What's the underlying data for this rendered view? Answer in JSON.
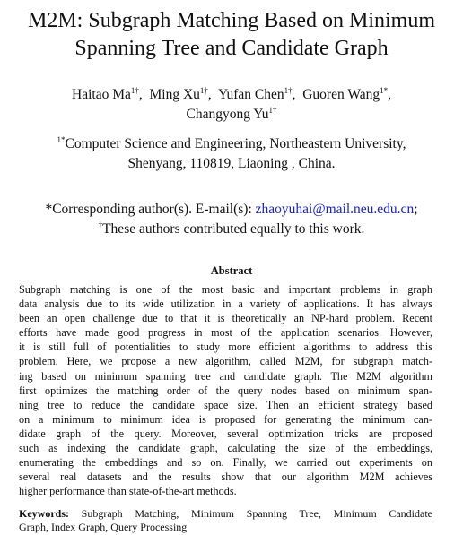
{
  "title": {
    "line1": "M2M: Subgraph Matching Based on Minimum",
    "line2": "Spanning Tree and Candidate Graph"
  },
  "authors": [
    {
      "name": "Haitao Ma",
      "mark": "1†"
    },
    {
      "name": "Ming Xu",
      "mark": "1†"
    },
    {
      "name": "Yufan Chen",
      "mark": "1†"
    },
    {
      "name": "Guoren Wang",
      "mark": "1*"
    },
    {
      "name": "Changyong Yu",
      "mark": "1†"
    }
  ],
  "affiliation": {
    "mark": "1*",
    "line1": "Computer Science and Engineering, Northeastern University,",
    "line2": "Shenyang, 110819, Liaoning , China."
  },
  "correspondence": {
    "prefix": "*Corresponding author(s). E-mail(s): ",
    "email": "zhaoyuhai@mail.neu.edu.cn",
    "suffix": ";",
    "mark": "†",
    "equal": "These authors contributed equally to this work."
  },
  "abstract": {
    "heading": "Abstract",
    "lines": [
      "Subgraph matching is one of the most basic and important problems in graph",
      "data analysis due to its wide utilization in a variety of applications. It has always",
      "been an open challenge due to that it is theoretically an NP-hard problem. Recent",
      "efforts have made good progress in most of the application scenarios. However,",
      "it is still full of potentialities to study more efficient algorithms to address this",
      "problem. Here, we propose a new algorithm, called M2M, for subgraph match-",
      "ing based on minimum spanning tree and candidate graph. The M2M algorithm",
      "first optimizes the matching order of the query nodes based on minimum span-",
      "ning tree to reduce the candidate space size. Then an efficient strategy based",
      "on a minimum to minimum idea is proposed for generating the minimum can-",
      "didate graph of the query. Moreover, several optimization tricks are proposed",
      "such as indexing the candidate graph, calculating the size of the embeddings,",
      "enumerating the embeddings and so on. Finally, we carried out experiments on",
      "several real datasets and the results show that our algorithm M2M achieves",
      "higher performance than state-of-the-art methods."
    ]
  },
  "keywords": {
    "label": "Keywords:",
    "line1": "Subgraph Matching, Minimum Spanning Tree, Minimum Candidate",
    "line2": "Graph, Index Graph, Query Processing"
  }
}
